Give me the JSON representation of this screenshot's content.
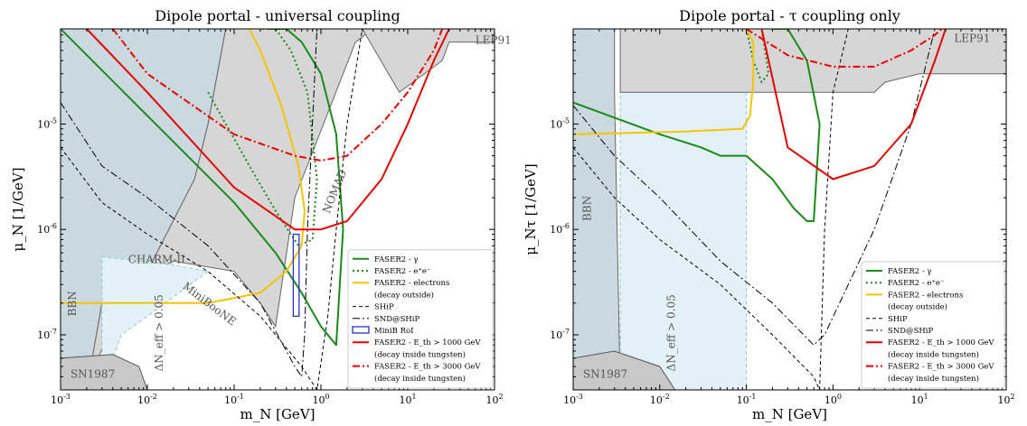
{
  "chart_data": [
    {
      "type": "line",
      "title": "Dipole portal - universal coupling",
      "xlabel": "m_N [GeV]",
      "ylabel": "μ_N [1/GeV]",
      "xscale": "log",
      "yscale": "log",
      "xlim": [
        0.001,
        100
      ],
      "ylim": [
        3e-08,
        8e-05
      ],
      "xticks": [
        "10^-3",
        "10^-2",
        "10^-1",
        "10^0",
        "10^1",
        "10^2"
      ],
      "yticks": [
        "10^-7",
        "10^-6",
        "10^-5"
      ],
      "legend_position": "lower-right",
      "region_labels": [
        "LEP91",
        "NOMAD",
        "CHARM-II",
        "MiniBooNE",
        "BBN",
        "SN1987",
        "ΔN_eff > 0.05"
      ],
      "series": [
        {
          "name": "FASER2 - γ",
          "color": "#1a8a1a",
          "style": "solid",
          "x": [
            0.001,
            0.01,
            0.1,
            0.3,
            0.6,
            1.0,
            1.5,
            1.8,
            1.5,
            1.0,
            0.6,
            0.4,
            0.25
          ],
          "y": [
            8e-05,
            1.2e-05,
            1.8e-06,
            6e-07,
            2.5e-07,
            1.2e-07,
            8e-08,
            1e-06,
            8e-06,
            3e-05,
            6e-05,
            8e-05,
            8e-05
          ]
        },
        {
          "name": "FASER2 - e⁺e⁻",
          "color": "#1a8a1a",
          "style": "dotted",
          "x": [
            0.05,
            0.15,
            0.3,
            0.55,
            0.8,
            0.9,
            0.7,
            0.45,
            0.3,
            0.2
          ],
          "y": [
            2e-05,
            4e-06,
            1.5e-06,
            7e-07,
            8e-07,
            3e-06,
            2e-05,
            5e-05,
            8e-05,
            8e-05
          ]
        },
        {
          "name": "FASER2 - electrons (decay outside)",
          "color": "#f5c400",
          "style": "solid",
          "x": [
            0.001,
            0.05,
            0.2,
            0.4,
            0.6,
            0.65,
            0.55,
            0.35,
            0.2,
            0.15
          ],
          "y": [
            2e-07,
            2e-07,
            2.5e-07,
            4e-07,
            7e-07,
            1.5e-06,
            4e-06,
            1.5e-05,
            5e-05,
            8e-05
          ]
        },
        {
          "name": "SHiP",
          "color": "#000000",
          "style": "dashed",
          "x": [
            0.001,
            0.003,
            0.01,
            0.05,
            0.2,
            0.6,
            0.9,
            1.2,
            1.5,
            2.0,
            3.0
          ],
          "y": [
            6e-06,
            1.8e-06,
            9e-07,
            4e-07,
            1.5e-07,
            5e-08,
            3e-08,
            1.5e-07,
            1e-06,
            1e-05,
            8e-05
          ]
        },
        {
          "name": "SND@SHiP",
          "color": "#000000",
          "style": "dashdot",
          "x": [
            0.001,
            0.003,
            0.01,
            0.05,
            0.2,
            0.5,
            0.6,
            0.65,
            0.7,
            0.9
          ],
          "y": [
            1.6e-05,
            4e-06,
            2e-06,
            7e-07,
            2e-07,
            5e-08,
            4e-08,
            1e-07,
            1e-06,
            8e-05
          ]
        },
        {
          "name": "MiniB RoI",
          "color": "#2233cc",
          "style": "box",
          "x": [
            0.48,
            0.56
          ],
          "y": [
            1.5e-07,
            9e-07
          ]
        },
        {
          "name": "FASER2 - E_th > 1000 GeV (decay inside tungsten)",
          "color": "#e60000",
          "style": "solid",
          "x": [
            0.002,
            0.01,
            0.1,
            0.5,
            1.0,
            2.0,
            5.0,
            10,
            20,
            30
          ],
          "y": [
            8e-05,
            2e-05,
            2.5e-06,
            1e-06,
            1e-06,
            1.2e-06,
            3e-06,
            1e-05,
            4e-05,
            8e-05
          ]
        },
        {
          "name": "FASER2 - E_th > 3000 GeV (decay inside tungsten)",
          "color": "#e60000",
          "style": "dashdot",
          "x": [
            0.004,
            0.01,
            0.1,
            0.5,
            1.0,
            2.0,
            5.0,
            10,
            20,
            25
          ],
          "y": [
            8e-05,
            3e-05,
            8e-06,
            5e-06,
            4.5e-06,
            5e-06,
            1e-05,
            2e-05,
            5e-05,
            8e-05
          ]
        }
      ]
    },
    {
      "type": "line",
      "title": "Dipole portal - τ coupling only",
      "xlabel": "m_N [GeV]",
      "ylabel": "μ_Nτ [1/GeV]",
      "xscale": "log",
      "yscale": "log",
      "xlim": [
        0.001,
        100
      ],
      "ylim": [
        3e-08,
        8e-05
      ],
      "xticks": [
        "10^-3",
        "10^-2",
        "10^-1",
        "10^0",
        "10^1",
        "10^2"
      ],
      "yticks": [
        "10^-7",
        "10^-6",
        "10^-5"
      ],
      "legend_position": "lower-right",
      "region_labels": [
        "LEP91",
        "BBN",
        "SN1987",
        "ΔN_eff > 0.05"
      ],
      "series": [
        {
          "name": "FASER2 - γ",
          "color": "#1a8a1a",
          "style": "solid",
          "x": [
            0.001,
            0.01,
            0.03,
            0.05,
            0.1,
            0.2,
            0.35,
            0.5,
            0.6,
            0.7,
            0.5,
            0.3,
            0.2
          ],
          "y": [
            1.6e-05,
            8e-06,
            6e-06,
            5e-06,
            5e-06,
            3e-06,
            1.6e-06,
            1.2e-06,
            1.2e-06,
            1e-05,
            4e-05,
            8e-05,
            8e-05
          ]
        },
        {
          "name": "FASER2 - e⁺e⁻",
          "color": "#1a8a1a",
          "style": "dotted",
          "x": [
            0.1,
            0.12,
            0.15,
            0.18,
            0.15
          ],
          "y": [
            8e-05,
            4e-05,
            2.5e-05,
            3e-05,
            8e-05
          ]
        },
        {
          "name": "FASER2 - electrons (decay outside)",
          "color": "#f5c400",
          "style": "solid",
          "x": [
            0.001,
            0.02,
            0.09,
            0.11,
            0.12,
            0.12,
            0.1
          ],
          "y": [
            8e-06,
            8.5e-06,
            9e-06,
            1.2e-05,
            2.5e-05,
            6e-05,
            8e-05
          ]
        },
        {
          "name": "SHiP",
          "color": "#000000",
          "style": "dashed",
          "x": [
            0.001,
            0.003,
            0.01,
            0.05,
            0.2,
            0.6,
            0.7,
            0.8,
            1.0,
            1.5
          ],
          "y": [
            6e-06,
            2e-06,
            8e-07,
            3e-07,
            1e-07,
            4e-08,
            3e-08,
            1e-06,
            2e-05,
            8e-05
          ]
        },
        {
          "name": "SND@SHiP",
          "color": "#000000",
          "style": "dashdot",
          "x": [
            0.001,
            0.003,
            0.01,
            0.05,
            0.2,
            0.6,
            0.8,
            3.0,
            8.0,
            15
          ],
          "y": [
            1.5e-05,
            5e-06,
            2e-06,
            5e-07,
            2e-07,
            8e-08,
            1e-07,
            1e-06,
            1e-05,
            8e-05
          ]
        },
        {
          "name": "FASER2 - E_th > 1000 GeV (decay inside tungsten)",
          "color": "#e60000",
          "style": "solid",
          "x": [
            0.15,
            0.3,
            1.0,
            3.0,
            8.0,
            15,
            20
          ],
          "y": [
            8e-05,
            6e-06,
            3e-06,
            4e-06,
            1e-05,
            4e-05,
            8e-05
          ]
        },
        {
          "name": "FASER2 - E_th > 3000 GeV (decay inside tungsten)",
          "color": "#e60000",
          "style": "dashdot",
          "x": [
            0.1,
            0.3,
            1.0,
            3.0,
            8.0,
            15,
            18
          ],
          "y": [
            8e-05,
            4.5e-05,
            3.5e-05,
            3.5e-05,
            5e-05,
            7e-05,
            8e-05
          ]
        }
      ]
    }
  ]
}
